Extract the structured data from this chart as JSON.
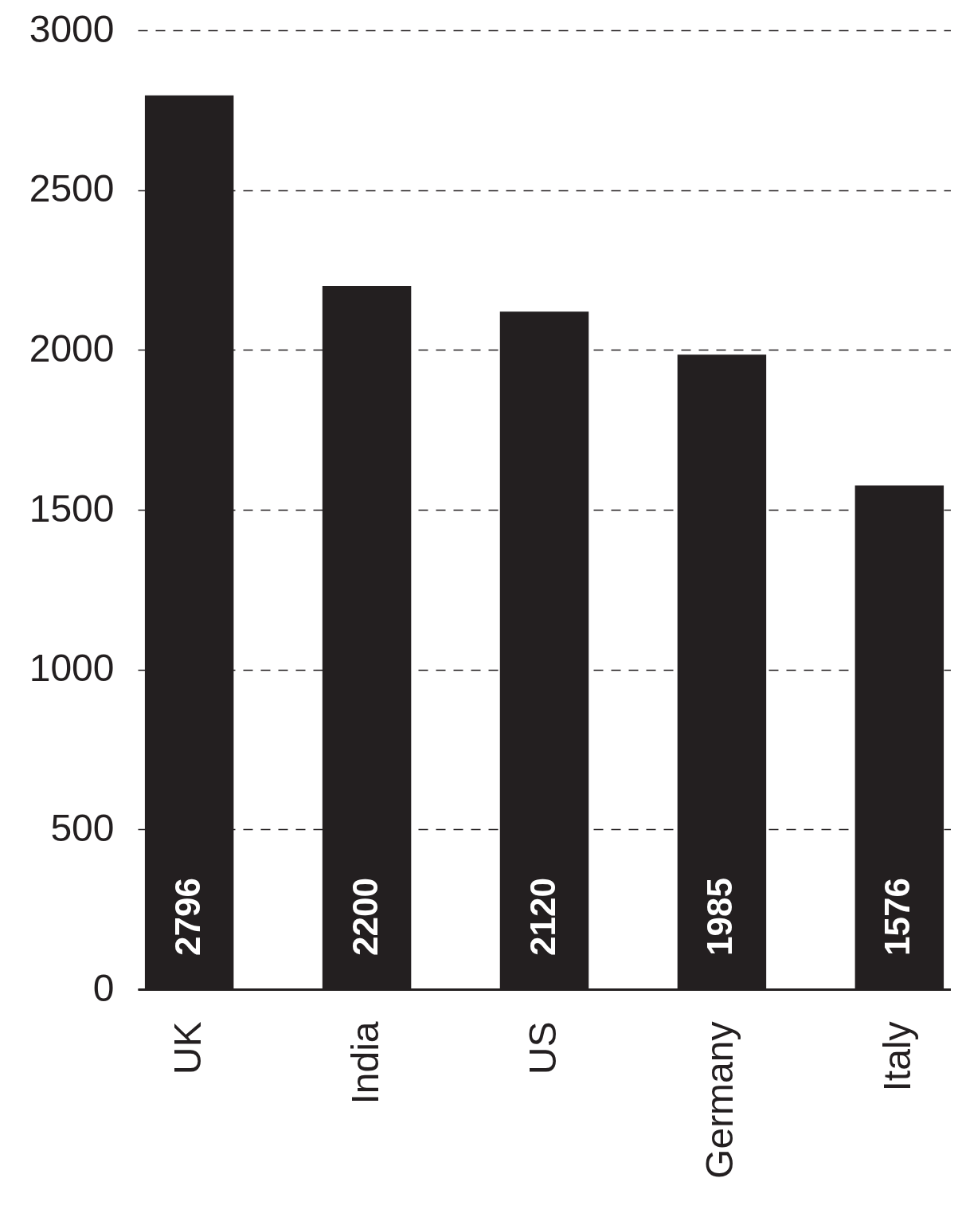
{
  "chart_data": {
    "type": "bar",
    "categories": [
      "UK",
      "India",
      "US",
      "Germany",
      "Italy"
    ],
    "values": [
      2796,
      2200,
      2120,
      1985,
      1576
    ],
    "color": "#231f20",
    "ylim": [
      0,
      3000
    ],
    "yticks": [
      0,
      500,
      1000,
      1500,
      2000,
      2500,
      3000
    ],
    "grid": "y",
    "data_labels": true
  }
}
